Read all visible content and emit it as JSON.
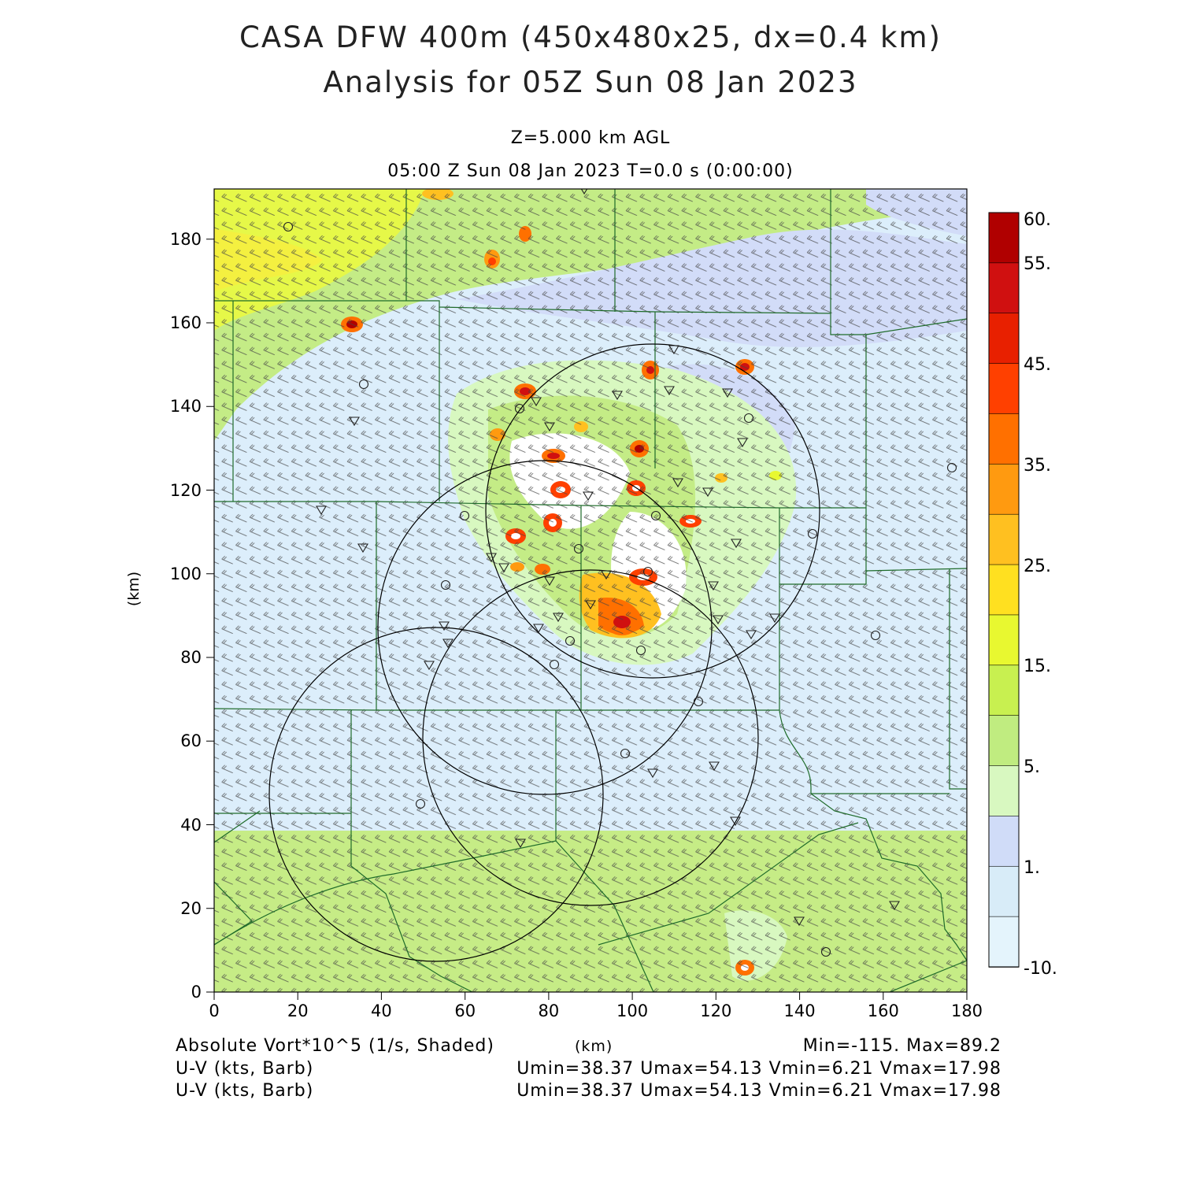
{
  "title": {
    "line1": "CASA DFW 400m (450x480x25, dx=0.4 km)",
    "line2": "Analysis for 05Z Sun 08 Jan 2023"
  },
  "subtitle": {
    "level": "Z=5.000 km AGL",
    "time": "05:00 Z Sun 08 Jan 2023    T=0.0 s (0:00:00)"
  },
  "axes": {
    "x_label": "(km)",
    "y_label": "(km)",
    "x_range": [
      0,
      180
    ],
    "y_range": [
      0,
      192
    ],
    "x_ticks": [
      "0",
      "20",
      "40",
      "60",
      "80",
      "100",
      "120",
      "140",
      "160",
      "180"
    ],
    "y_ticks": [
      "0",
      "20",
      "40",
      "60",
      "80",
      "100",
      "120",
      "140",
      "160",
      "180"
    ]
  },
  "colorbar": {
    "labels": [
      "60.",
      "55.",
      "45.",
      "35.",
      "25.",
      "15.",
      "5.",
      "1.",
      "-10."
    ],
    "colors": [
      "#b00000",
      "#d01010",
      "#e82000",
      "#ff4000",
      "#ff7000",
      "#ff9a10",
      "#ffc020",
      "#ffe020",
      "#e8f830",
      "#c8f050",
      "#c0ec80",
      "#d8f8c0",
      "#d0dcf8",
      "#d8ecf8",
      "#e4f4fc"
    ]
  },
  "footer": {
    "field": "Absolute Vort*10^5 (1/s, Shaded)",
    "units": "(km)",
    "minmax": "Min=-115. Max=89.2",
    "barb1": "U-V (kts, Barb)",
    "barb2": "U-V (kts, Barb)",
    "stats1": "Umin=38.37  Umax=54.13  Vmin=6.21  Vmax=17.98",
    "stats2": "Umin=38.37  Umax=54.13  Vmin=6.21  Vmax=17.98"
  },
  "palette": {
    "background_field": "#dceefb",
    "boundary_lines": "#1f6b2a",
    "range_rings": "#000000"
  }
}
